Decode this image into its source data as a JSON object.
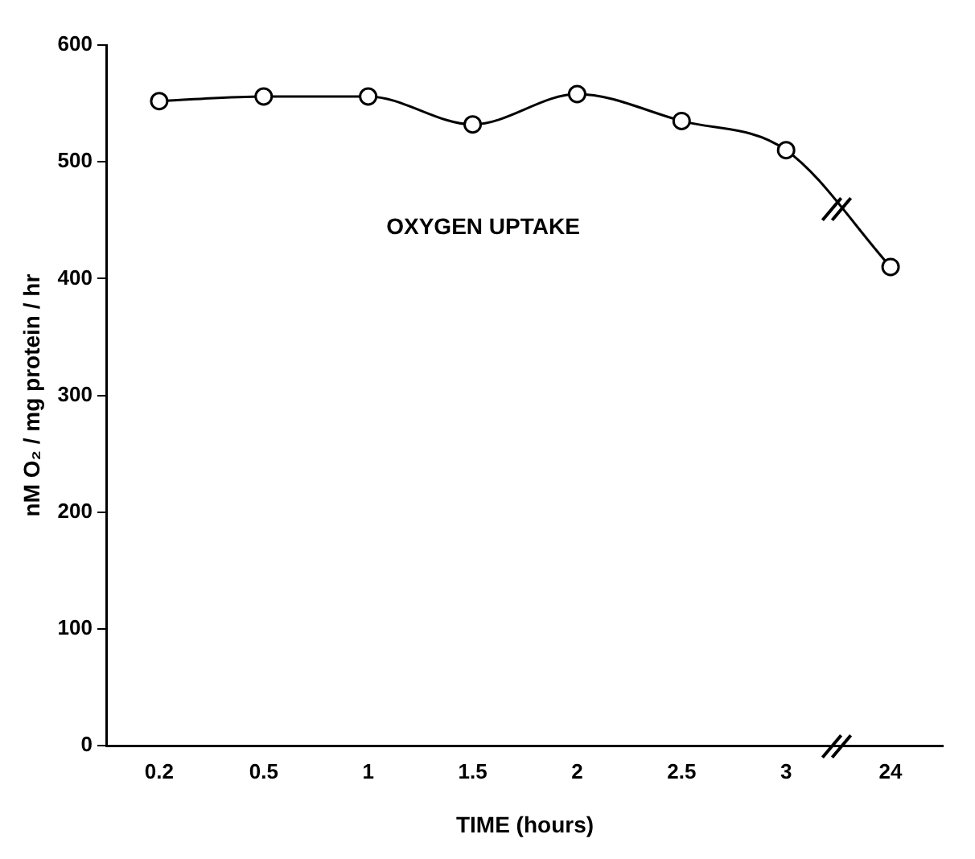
{
  "chart_data": {
    "type": "line",
    "xlabel": "TIME (hours)",
    "ylabel": "nM O₂ / mg protein / hr",
    "annotations": [
      "OXYGEN UPTAKE"
    ],
    "categories": [
      "0.2",
      "0.5",
      "1",
      "1.5",
      "2",
      "2.5",
      "3",
      "24"
    ],
    "series": [
      {
        "color": "#000000",
        "values": [
          552,
          556,
          556,
          532,
          558,
          535,
          510,
          410
        ]
      }
    ],
    "ylim": [
      0,
      600
    ],
    "yticks": [
      0,
      100,
      200,
      300,
      400,
      500,
      600
    ],
    "grid": false,
    "legend": false,
    "marker": "circle",
    "line_style": "solid"
  }
}
